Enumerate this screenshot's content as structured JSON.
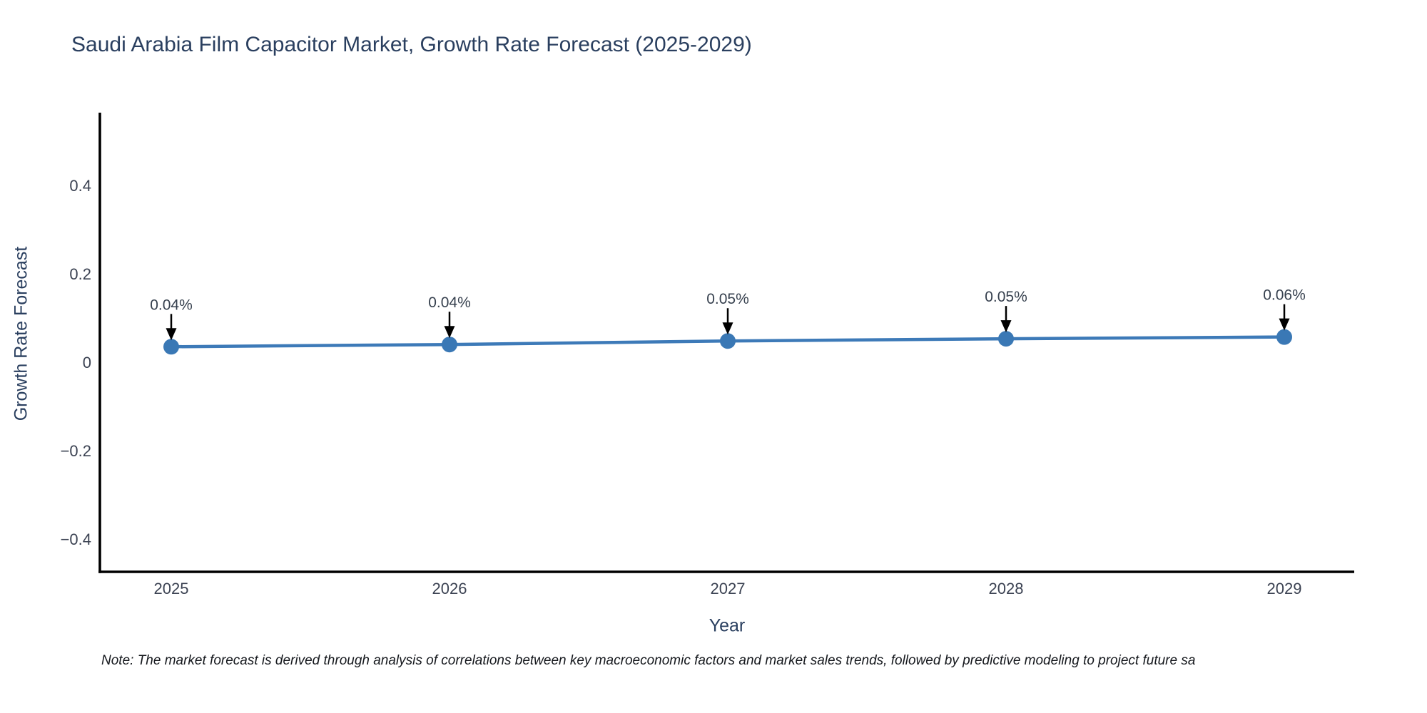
{
  "figure": {
    "title": "Saudi Arabia Film Capacitor Market, Growth Rate Forecast (2025-2029)",
    "note": "Note: The market forecast is derived through analysis of correlations between key macroeconomic factors and market sales trends, followed by predictive modeling to project future sa"
  },
  "chart_data": {
    "type": "line",
    "title": "Saudi Arabia Film Capacitor Market, Growth Rate Forecast (2025-2029)",
    "xlabel": "Year",
    "ylabel": "Growth Rate Forecast",
    "categories": [
      "2025",
      "2026",
      "2027",
      "2028",
      "2029"
    ],
    "values": [
      0.035,
      0.04,
      0.048,
      0.053,
      0.057
    ],
    "point_labels": [
      "0.04%",
      "0.04%",
      "0.05%",
      "0.05%",
      "0.06%"
    ],
    "yticks": [
      0.4,
      0.2,
      0,
      -0.2,
      -0.4
    ],
    "ytick_labels": [
      "0.4",
      "0.2",
      "0",
      "−0.2",
      "−0.4"
    ],
    "ylim": [
      -0.47,
      0.57
    ],
    "grid": false,
    "legend": false,
    "marker": "circle",
    "annotation_arrows": "black arrows pointing down from labels to markers",
    "colors": {
      "line": "#3d7ab8",
      "marker": "#3a78b5",
      "axis": "#000000",
      "tick_text": "#3b4252",
      "label_text": "#36404e",
      "title_text": "#2a3f5f",
      "arrow": "#000000"
    }
  }
}
